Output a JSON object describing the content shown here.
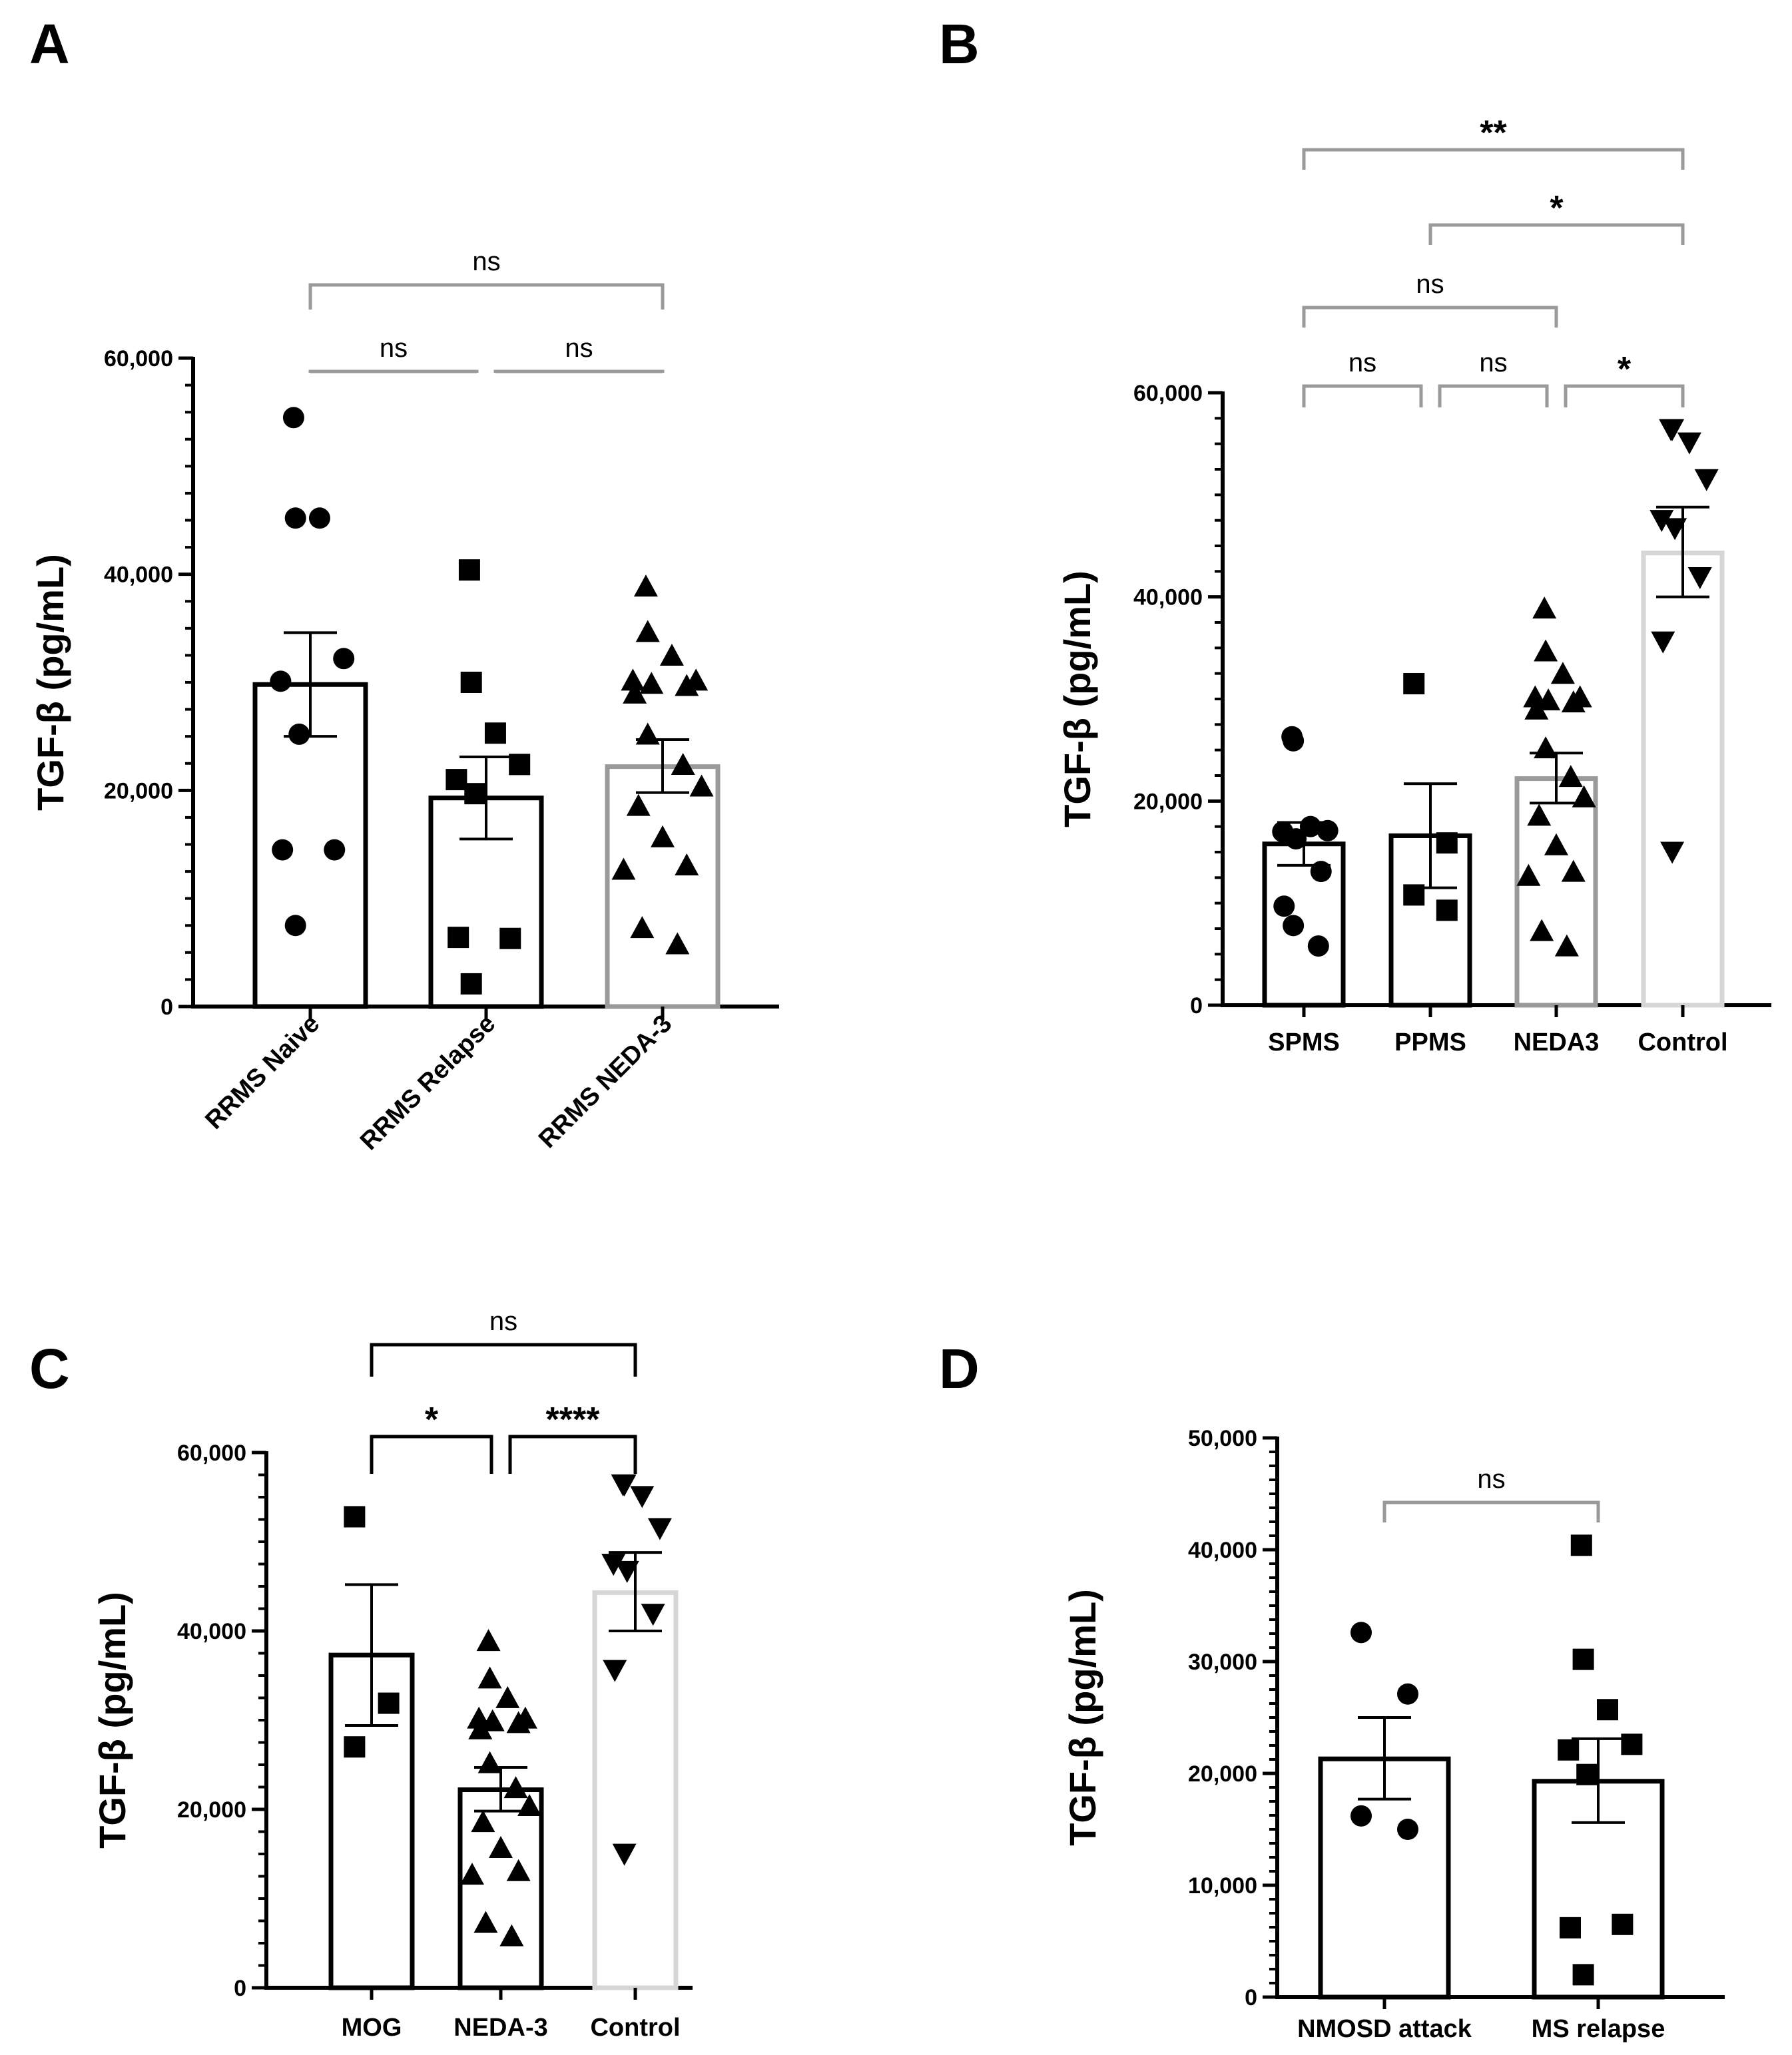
{
  "figure": {
    "ylabel": "TGF-β (pg/mL)",
    "colors": {
      "black": "#000000",
      "mid_gray": "#9a9a9a",
      "light_gray": "#d6d6d6",
      "bracket_gray": "#8c8c8c"
    }
  },
  "chart_data": [
    {
      "panel": "A",
      "type": "bar",
      "ylabel": "TGF-β (pg/mL)",
      "ylim": [
        0,
        60000
      ],
      "yticks": [
        "0",
        "20,000",
        "40,000",
        "60,000"
      ],
      "categories": [
        "RRMS Naive",
        "RRMS Relapse",
        "RRMS NEDA-3"
      ],
      "groups": [
        {
          "name": "RRMS Naive",
          "mean": 29800,
          "sem_low": 25000,
          "sem_high": 34600,
          "marker": "circle",
          "color": "#000000",
          "points": [
            54500,
            45200,
            45200,
            32200,
            30100,
            25200,
            14500,
            14500,
            7500
          ]
        },
        {
          "name": "RRMS Relapse",
          "mean": 19300,
          "sem_low": 15500,
          "sem_high": 23100,
          "marker": "square",
          "color": "#000000",
          "points": [
            40400,
            30000,
            25300,
            22400,
            21000,
            19700,
            6300,
            6400,
            2100
          ]
        },
        {
          "name": "RRMS NEDA-3",
          "mean": 22200,
          "sem_low": 19800,
          "sem_high": 24700,
          "marker": "triangle",
          "color": "#9a9a9a",
          "points": [
            38800,
            34600,
            32400,
            30100,
            30100,
            29800,
            29600,
            28900,
            25100,
            22300,
            20300,
            18500,
            15600,
            13000,
            12600,
            7200,
            5700
          ]
        }
      ],
      "comparisons": [
        {
          "from": 0,
          "to": 1,
          "label": "ns"
        },
        {
          "from": 1,
          "to": 2,
          "label": "ns"
        },
        {
          "from": 0,
          "to": 2,
          "label": "ns"
        }
      ]
    },
    {
      "panel": "B",
      "type": "bar",
      "ylabel": "TGF-β (pg/mL)",
      "ylim": [
        0,
        60000
      ],
      "yticks": [
        "0",
        "20,000",
        "40,000",
        "60,000"
      ],
      "categories": [
        "SPMS",
        "PPMS",
        "NEDA3",
        "Control"
      ],
      "groups": [
        {
          "name": "SPMS",
          "mean": 15800,
          "sem_low": 13700,
          "sem_high": 17900,
          "marker": "circle",
          "color": "#000000",
          "points": [
            26300,
            25900,
            17500,
            17100,
            17000,
            16300,
            13100,
            9700,
            7800,
            5800
          ]
        },
        {
          "name": "PPMS",
          "mean": 16600,
          "sem_low": 11500,
          "sem_high": 21700,
          "marker": "square",
          "color": "#000000",
          "points": [
            31500,
            15900,
            10800,
            9300
          ]
        },
        {
          "name": "NEDA3",
          "mean": 22200,
          "sem_low": 19800,
          "sem_high": 24700,
          "marker": "triangle",
          "color": "#9a9a9a",
          "points": [
            38800,
            34600,
            32400,
            30100,
            30100,
            29800,
            29600,
            28900,
            25100,
            22300,
            20300,
            18500,
            15600,
            13000,
            12600,
            7200,
            5700
          ]
        },
        {
          "name": "Control",
          "mean": 44300,
          "sem_low": 40000,
          "sem_high": 48800,
          "marker": "triangle-down",
          "color": "#d6d6d6",
          "points": [
            56500,
            56500,
            55200,
            51600,
            47600,
            46800,
            42000,
            35700,
            15100
          ]
        }
      ],
      "comparisons": [
        {
          "from": 0,
          "to": 1,
          "label": "ns"
        },
        {
          "from": 1,
          "to": 2,
          "label": "ns"
        },
        {
          "from": 2,
          "to": 3,
          "label": "*"
        },
        {
          "from": 0,
          "to": 2,
          "label": "ns"
        },
        {
          "from": 1,
          "to": 3,
          "label": "*"
        },
        {
          "from": 0,
          "to": 3,
          "label": "**"
        }
      ]
    },
    {
      "panel": "C",
      "type": "bar",
      "ylabel": "TGF-β (pg/mL)",
      "ylim": [
        0,
        60000
      ],
      "yticks": [
        "0",
        "20,000",
        "40,000",
        "60,000"
      ],
      "categories": [
        "MOG",
        "NEDA-3",
        "Control"
      ],
      "groups": [
        {
          "name": "MOG",
          "mean": 37300,
          "sem_low": 29400,
          "sem_high": 45200,
          "marker": "square",
          "color": "#000000",
          "points": [
            52800,
            31900,
            27000
          ]
        },
        {
          "name": "NEDA-3",
          "mean": 22200,
          "sem_low": 19800,
          "sem_high": 24700,
          "marker": "triangle",
          "color": "#000000",
          "points": [
            38800,
            34600,
            32400,
            30100,
            30100,
            29800,
            29600,
            28900,
            25100,
            22300,
            20300,
            18500,
            15600,
            13000,
            12600,
            7200,
            5700
          ]
        },
        {
          "name": "Control",
          "mean": 44300,
          "sem_low": 40000,
          "sem_high": 48800,
          "marker": "triangle-down",
          "color": "#d6d6d6",
          "points": [
            56500,
            56500,
            55200,
            51600,
            47600,
            46800,
            42000,
            35700,
            15100
          ]
        }
      ],
      "comparisons": [
        {
          "from": 0,
          "to": 1,
          "label": "*"
        },
        {
          "from": 1,
          "to": 2,
          "label": "****"
        },
        {
          "from": 0,
          "to": 2,
          "label": "ns"
        }
      ]
    },
    {
      "panel": "D",
      "type": "bar",
      "ylabel": "TGF-β (pg/mL)",
      "ylim": [
        0,
        50000
      ],
      "yticks": [
        "0",
        "10,000",
        "20,000",
        "30,000",
        "40,000",
        "50,000"
      ],
      "categories": [
        "NMOSD attack",
        "MS relapse"
      ],
      "groups": [
        {
          "name": "NMOSD attack",
          "mean": 21300,
          "sem_low": 17700,
          "sem_high": 25000,
          "marker": "circle",
          "color": "#000000",
          "points": [
            32600,
            27100,
            16200,
            15000
          ]
        },
        {
          "name": "MS relapse",
          "mean": 19300,
          "sem_low": 15600,
          "sem_high": 23100,
          "marker": "square",
          "color": "#000000",
          "points": [
            40400,
            30200,
            25700,
            22600,
            22100,
            19900,
            6500,
            6200,
            2000
          ]
        }
      ],
      "comparisons": [
        {
          "from": 0,
          "to": 1,
          "label": "ns"
        }
      ]
    }
  ]
}
